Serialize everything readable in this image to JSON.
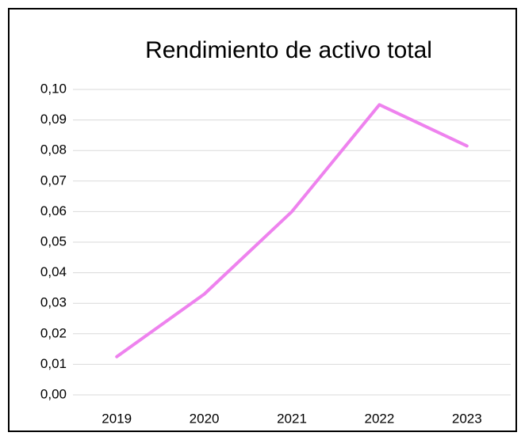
{
  "chart_data": {
    "type": "line",
    "title": "Rendimiento de activo total",
    "categories": [
      "2019",
      "2020",
      "2021",
      "2022",
      "2023"
    ],
    "series": [
      {
        "name": "Rendimiento de activo total",
        "color": "#ee82ee",
        "values": [
          0.0125,
          0.033,
          0.06,
          0.095,
          0.0815
        ]
      }
    ],
    "ylim": [
      0,
      0.1
    ],
    "yticks": [
      {
        "value": 0,
        "label": "0,00"
      },
      {
        "value": 0.01,
        "label": "0,01"
      },
      {
        "value": 0.02,
        "label": "0,02"
      },
      {
        "value": 0.03,
        "label": "0,03"
      },
      {
        "value": 0.04,
        "label": "0,04"
      },
      {
        "value": 0.05,
        "label": "0,05"
      },
      {
        "value": 0.06,
        "label": "0,06"
      },
      {
        "value": 0.07,
        "label": "0,07"
      },
      {
        "value": 0.08,
        "label": "0,08"
      },
      {
        "value": 0.09,
        "label": "0,09"
      },
      {
        "value": 0.1,
        "label": "0,10"
      }
    ],
    "grid": true
  }
}
